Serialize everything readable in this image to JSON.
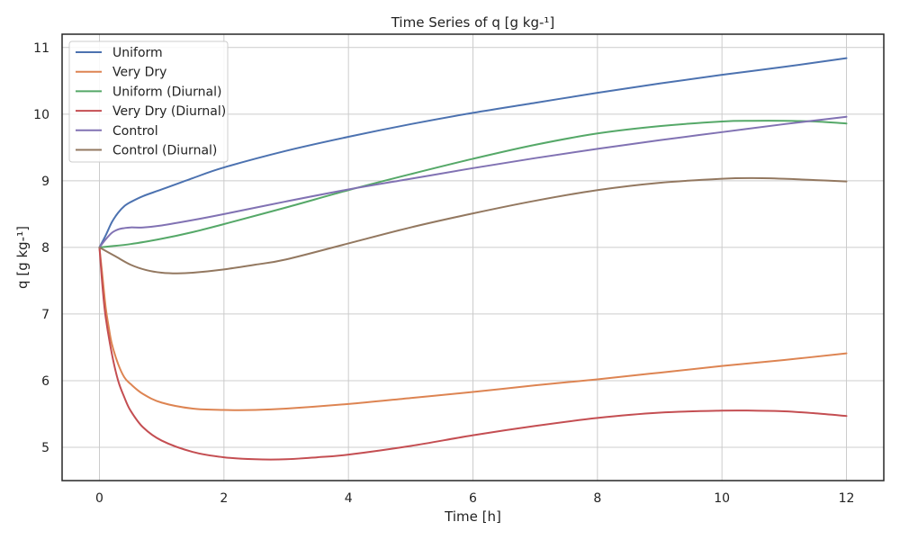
{
  "chart_data": {
    "type": "line",
    "title": "Time Series of q [g kg-¹]",
    "xlabel": "Time [h]",
    "ylabel": "q [g kg-¹]",
    "xlim": [
      -0.6,
      12.6
    ],
    "ylim": [
      4.5,
      11.2
    ],
    "xticks": [
      0,
      2,
      4,
      6,
      8,
      10,
      12
    ],
    "xtick_labels": [
      "0",
      "2",
      "4",
      "6",
      "8",
      "10",
      "12"
    ],
    "yticks": [
      5,
      6,
      7,
      8,
      9,
      10,
      11
    ],
    "ytick_labels": [
      "5",
      "6",
      "7",
      "8",
      "9",
      "10",
      "11"
    ],
    "grid": true,
    "legend_position": "top-left",
    "series": [
      {
        "name": "Uniform",
        "color": "#4c72b0",
        "x": [
          0,
          0.1,
          0.2,
          0.3,
          0.4,
          0.5,
          0.7,
          1,
          1.5,
          2,
          3,
          4,
          5,
          6,
          7,
          8,
          9,
          10,
          11,
          12
        ],
        "y": [
          8.0,
          8.18,
          8.38,
          8.52,
          8.62,
          8.68,
          8.77,
          8.87,
          9.04,
          9.2,
          9.45,
          9.66,
          9.85,
          10.02,
          10.17,
          10.32,
          10.46,
          10.59,
          10.71,
          10.84
        ]
      },
      {
        "name": "Very Dry",
        "color": "#dd8452",
        "x": [
          0,
          0.05,
          0.1,
          0.15,
          0.2,
          0.3,
          0.4,
          0.5,
          0.7,
          1,
          1.5,
          2,
          2.5,
          3,
          4,
          5,
          6,
          7,
          8,
          9,
          10,
          11,
          12
        ],
        "y": [
          8.0,
          7.55,
          7.1,
          6.8,
          6.55,
          6.25,
          6.05,
          5.95,
          5.8,
          5.67,
          5.58,
          5.56,
          5.56,
          5.58,
          5.65,
          5.74,
          5.83,
          5.93,
          6.02,
          6.12,
          6.22,
          6.31,
          6.41
        ]
      },
      {
        "name": "Uniform (Diurnal)",
        "color": "#55a868",
        "x": [
          0,
          0.5,
          1,
          1.5,
          2,
          3,
          4,
          5,
          6,
          7,
          8,
          9,
          10,
          10.5,
          11,
          11.5,
          12
        ],
        "y": [
          8.0,
          8.05,
          8.13,
          8.23,
          8.35,
          8.6,
          8.86,
          9.1,
          9.33,
          9.54,
          9.71,
          9.82,
          9.89,
          9.9,
          9.9,
          9.89,
          9.86
        ]
      },
      {
        "name": "Very Dry (Diurnal)",
        "color": "#c44e52",
        "x": [
          0,
          0.05,
          0.1,
          0.2,
          0.3,
          0.4,
          0.5,
          0.7,
          1,
          1.5,
          2,
          2.5,
          3,
          3.5,
          4,
          5,
          6,
          7,
          8,
          9,
          10,
          10.5,
          11,
          11.5,
          12
        ],
        "y": [
          8.0,
          7.4,
          6.95,
          6.4,
          6.0,
          5.75,
          5.55,
          5.3,
          5.1,
          4.93,
          4.85,
          4.82,
          4.82,
          4.85,
          4.89,
          5.02,
          5.18,
          5.32,
          5.44,
          5.52,
          5.55,
          5.55,
          5.54,
          5.51,
          5.47
        ]
      },
      {
        "name": "Control",
        "color": "#8172b3",
        "x": [
          0,
          0.1,
          0.2,
          0.3,
          0.4,
          0.5,
          0.7,
          1,
          1.5,
          2,
          3,
          4,
          5,
          6,
          7,
          8,
          9,
          10,
          11,
          12
        ],
        "y": [
          8.0,
          8.12,
          8.22,
          8.27,
          8.29,
          8.3,
          8.3,
          8.33,
          8.41,
          8.5,
          8.69,
          8.87,
          9.03,
          9.19,
          9.34,
          9.48,
          9.61,
          9.73,
          9.85,
          9.96
        ]
      },
      {
        "name": "Control (Diurnal)",
        "color": "#937860",
        "x": [
          0,
          0.25,
          0.5,
          0.75,
          1,
          1.25,
          1.5,
          2,
          2.5,
          3,
          4,
          5,
          6,
          7,
          8,
          9,
          10,
          10.5,
          11,
          11.5,
          12
        ],
        "y": [
          8.0,
          7.87,
          7.74,
          7.66,
          7.62,
          7.61,
          7.62,
          7.67,
          7.74,
          7.82,
          8.06,
          8.3,
          8.51,
          8.7,
          8.86,
          8.97,
          9.03,
          9.04,
          9.03,
          9.01,
          8.99
        ]
      }
    ]
  }
}
